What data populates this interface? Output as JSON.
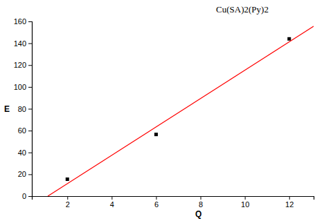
{
  "chart_data": {
    "type": "scatter",
    "title": "Cu(SA)2(Py)2",
    "x_label": "Q",
    "y_label": "E",
    "xlim": [
      0.4,
      13.1
    ],
    "ylim": [
      0,
      160
    ],
    "xticks": [
      2,
      4,
      6,
      8,
      10,
      12
    ],
    "yticks": [
      0,
      20,
      40,
      60,
      80,
      100,
      120,
      140,
      160
    ],
    "grid": false,
    "series": [
      {
        "type": "scatter",
        "color": "#000000",
        "marker": "square",
        "x": [
          2,
          6,
          12
        ],
        "values": [
          15.5,
          56.5,
          144
        ]
      },
      {
        "type": "line",
        "color": "#ff0000",
        "line_style": "solid",
        "x": [
          1.12,
          13.1
        ],
        "values": [
          0,
          155.5
        ]
      }
    ]
  }
}
